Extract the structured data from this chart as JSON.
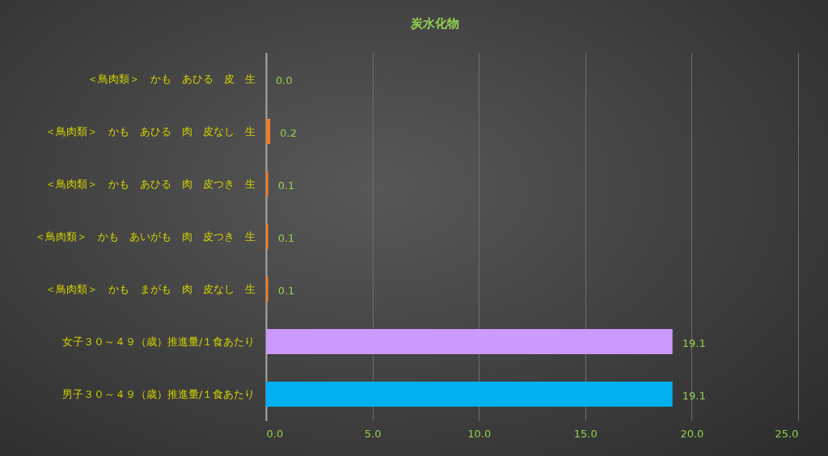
{
  "chart_data": {
    "type": "bar",
    "orientation": "horizontal",
    "title": "炭水化物",
    "categories": [
      "＜鳥肉類＞　かも　あひる　皮　生",
      "＜鳥肉類＞　かも　あひる　肉　皮なし　生",
      "＜鳥肉類＞　かも　あひる　肉　皮つき　生",
      "＜鳥肉類＞　かも　あいがも　肉　皮つき　生",
      "＜鳥肉類＞　かも　まがも　肉　皮なし　生",
      "女子３０～４９（歳）推進量/１食あたり",
      "男子３０～４９（歳）推進量/１食あたり"
    ],
    "values": [
      0,
      0.2,
      0.1,
      0.1,
      0.1,
      19.1,
      19.1
    ],
    "value_labels": [
      "0.0",
      "0.2",
      "0.1",
      "0.1",
      "0.1",
      "19.1",
      "19.1"
    ],
    "colors": [
      "#ed7d31",
      "#ed7d31",
      "#ed7d31",
      "#ed7d31",
      "#ed7d31",
      "#cc99ff",
      "#00b0f0"
    ],
    "xlim": [
      0,
      25
    ],
    "xticks": [
      {
        "value": 0,
        "label": "0.0"
      },
      {
        "value": 5,
        "label": "5.0"
      },
      {
        "value": 10,
        "label": "10.0"
      },
      {
        "value": 15,
        "label": "15.0"
      },
      {
        "value": 20,
        "label": "20.0"
      },
      {
        "value": 25,
        "label": "25.0"
      }
    ],
    "grid": "x",
    "legend": false
  }
}
